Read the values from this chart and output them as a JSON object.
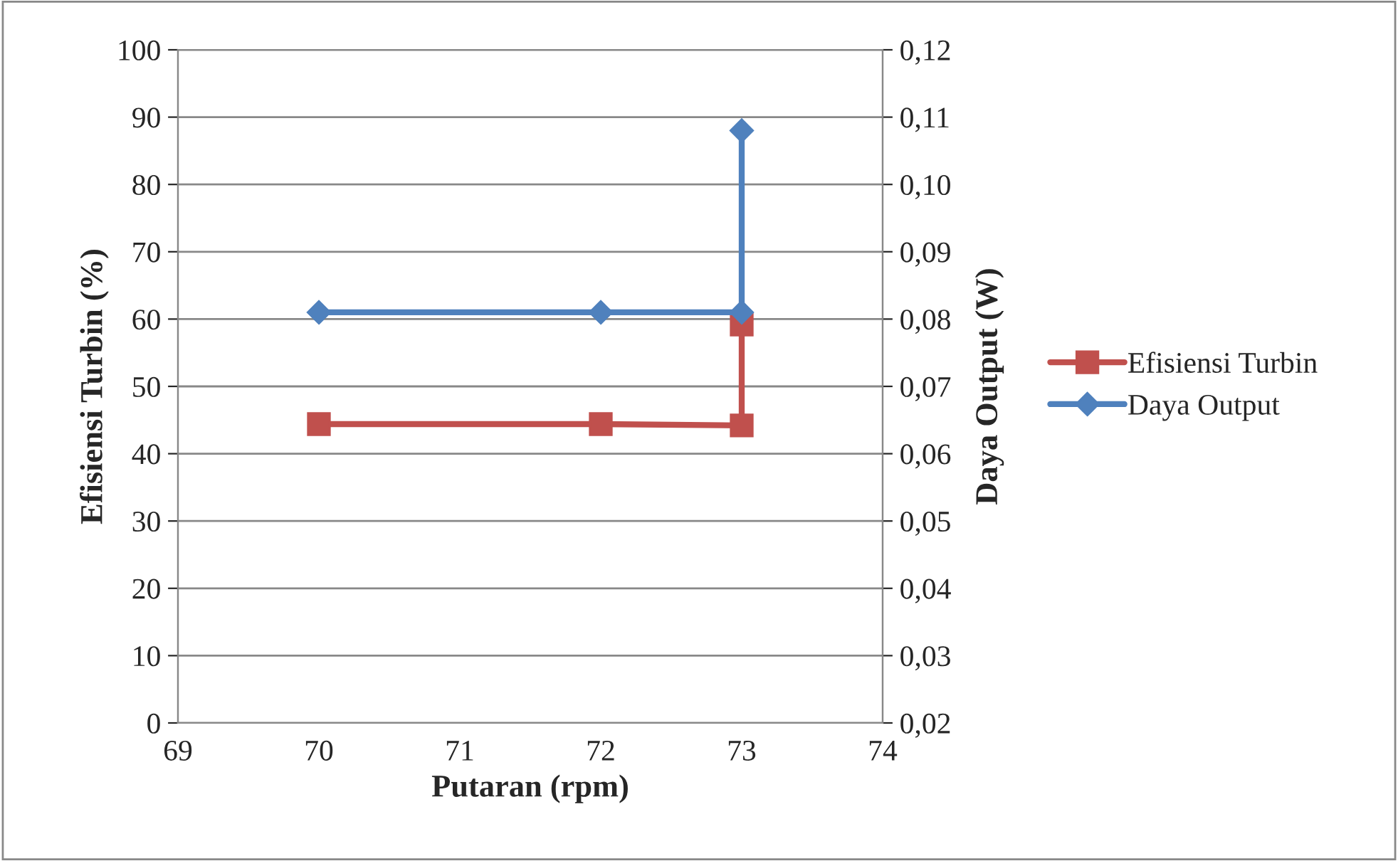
{
  "chart_data": {
    "type": "line",
    "xlabel": "Putaran (rpm)",
    "ylabel": "Efisiensi Turbin (%)",
    "y2label": "Daya Output (W)",
    "xlim": [
      69,
      74
    ],
    "xticks": [
      69,
      70,
      71,
      72,
      73,
      74
    ],
    "ylim": [
      0,
      100
    ],
    "yticks": [
      0,
      10,
      20,
      30,
      40,
      50,
      60,
      70,
      80,
      90,
      100
    ],
    "y2lim": [
      0.02,
      0.12
    ],
    "y2ticks": [
      {
        "value": 0.02,
        "label": "0,02"
      },
      {
        "value": 0.03,
        "label": "0,03"
      },
      {
        "value": 0.04,
        "label": "0,04"
      },
      {
        "value": 0.05,
        "label": "0,05"
      },
      {
        "value": 0.06,
        "label": "0,06"
      },
      {
        "value": 0.07,
        "label": "0,07"
      },
      {
        "value": 0.08,
        "label": "0,08"
      },
      {
        "value": 0.09,
        "label": "0,09"
      },
      {
        "value": 0.1,
        "label": "0,10"
      },
      {
        "value": 0.11,
        "label": "0,11"
      },
      {
        "value": 0.12,
        "label": "0,12"
      }
    ],
    "grid": "y",
    "legend": "right",
    "series": [
      {
        "name": "Efisiensi Turbin",
        "color": "#c0504d",
        "marker": "square",
        "x": [
          70,
          72,
          73,
          73
        ],
        "values": [
          44.4,
          44.4,
          44.2,
          59.2
        ]
      },
      {
        "name": "Daya Output",
        "color": "#4f81bd",
        "marker": "diamond",
        "axis": "y2",
        "x": [
          70,
          72,
          73,
          73
        ],
        "values": [
          0.081,
          0.081,
          0.081,
          0.108
        ]
      }
    ]
  }
}
